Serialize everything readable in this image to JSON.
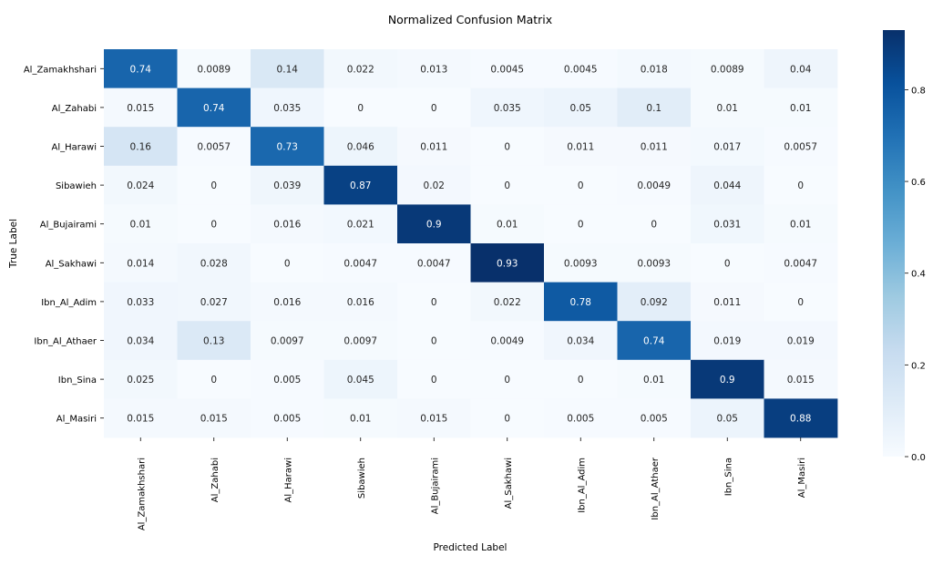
{
  "chart_data": {
    "type": "heatmap",
    "title": "Normalized Confusion Matrix",
    "xlabel": "Predicted Label",
    "ylabel": "True Label",
    "x_categories": [
      "Al_Zamakhshari",
      "Al_Zahabi",
      "Al_Harawi",
      "Sibawieh",
      "Al_Bujairami",
      "Al_Sakhawi",
      "Ibn_Al_Adim",
      "Ibn_Al_Athaer",
      "Ibn_Sina",
      "Al_Masiri"
    ],
    "y_categories": [
      "Al_Zamakhshari",
      "Al_Zahabi",
      "Al_Harawi",
      "Sibawieh",
      "Al_Bujairami",
      "Al_Sakhawi",
      "Ibn_Al_Adim",
      "Ibn_Al_Athaer",
      "Ibn_Sina",
      "Al_Masiri"
    ],
    "cell_labels": [
      [
        "0.74",
        "0.0089",
        "0.14",
        "0.022",
        "0.013",
        "0.0045",
        "0.0045",
        "0.018",
        "0.0089",
        "0.04"
      ],
      [
        "0.015",
        "0.74",
        "0.035",
        "0",
        "0",
        "0.035",
        "0.05",
        "0.1",
        "0.01",
        "0.01"
      ],
      [
        "0.16",
        "0.0057",
        "0.73",
        "0.046",
        "0.011",
        "0",
        "0.011",
        "0.011",
        "0.017",
        "0.0057"
      ],
      [
        "0.024",
        "0",
        "0.039",
        "0.87",
        "0.02",
        "0",
        "0",
        "0.0049",
        "0.044",
        "0"
      ],
      [
        "0.01",
        "0",
        "0.016",
        "0.021",
        "0.9",
        "0.01",
        "0",
        "0",
        "0.031",
        "0.01"
      ],
      [
        "0.014",
        "0.028",
        "0",
        "0.0047",
        "0.0047",
        "0.93",
        "0.0093",
        "0.0093",
        "0",
        "0.0047"
      ],
      [
        "0.033",
        "0.027",
        "0.016",
        "0.016",
        "0",
        "0.022",
        "0.78",
        "0.092",
        "0.011",
        "0"
      ],
      [
        "0.034",
        "0.13",
        "0.0097",
        "0.0097",
        "0",
        "0.0049",
        "0.034",
        "0.74",
        "0.019",
        "0.019"
      ],
      [
        "0.025",
        "0",
        "0.005",
        "0.045",
        "0",
        "0",
        "0",
        "0.01",
        "0.9",
        "0.015"
      ],
      [
        "0.015",
        "0.015",
        "0.005",
        "0.01",
        "0.015",
        "0",
        "0.005",
        "0.005",
        "0.05",
        "0.88"
      ]
    ],
    "colorbar": {
      "min": 0,
      "max": 0.93,
      "ticks": [
        "0.0",
        "0.2",
        "0.4",
        "0.6",
        "0.8"
      ],
      "colormap": "Blues"
    }
  }
}
